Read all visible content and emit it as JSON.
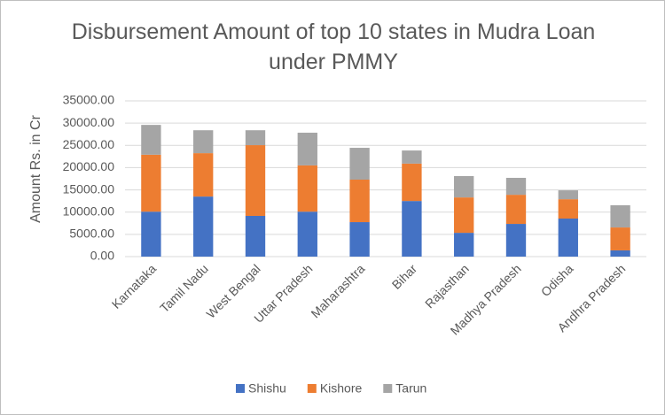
{
  "chart_data": {
    "type": "stacked_bar",
    "title": "Disbursement Amount of top 10 states in Mudra Loan under PMMY",
    "y_label": "Amount Rs. in Cr",
    "categories": [
      "Karnataka",
      "Tamil Nadu",
      "West Bengal",
      "Uttar Pradesh",
      "Maharashtra",
      "Bihar",
      "Rajasthan",
      "Madhya Pradesh",
      "Odisha",
      "Andhra Pradesh"
    ],
    "series": [
      {
        "name": "Shishu",
        "color": "#4472c4",
        "values": [
          10100,
          13500,
          9150,
          10100,
          7750,
          12500,
          5350,
          7350,
          8550,
          1400
        ]
      },
      {
        "name": "Kishore",
        "color": "#ed7d31",
        "values": [
          12800,
          9750,
          15900,
          10400,
          9550,
          8400,
          7950,
          6550,
          4350,
          5150
        ]
      },
      {
        "name": "Tarun",
        "color": "#a5a5a5",
        "values": [
          6700,
          5150,
          3350,
          7350,
          7150,
          2950,
          4800,
          3800,
          2000,
          5000
        ]
      }
    ],
    "ylim": [
      0,
      35000
    ],
    "yticks": [
      {
        "value": 0,
        "label": "0.00"
      },
      {
        "value": 5000,
        "label": "5000.00"
      },
      {
        "value": 10000,
        "label": "10000.00"
      },
      {
        "value": 15000,
        "label": "15000.00"
      },
      {
        "value": 20000,
        "label": "20000.00"
      },
      {
        "value": 25000,
        "label": "25000.00"
      },
      {
        "value": 30000,
        "label": "30000.00"
      },
      {
        "value": 35000,
        "label": "35000.00"
      }
    ],
    "grid": true,
    "legend": "bottom"
  }
}
